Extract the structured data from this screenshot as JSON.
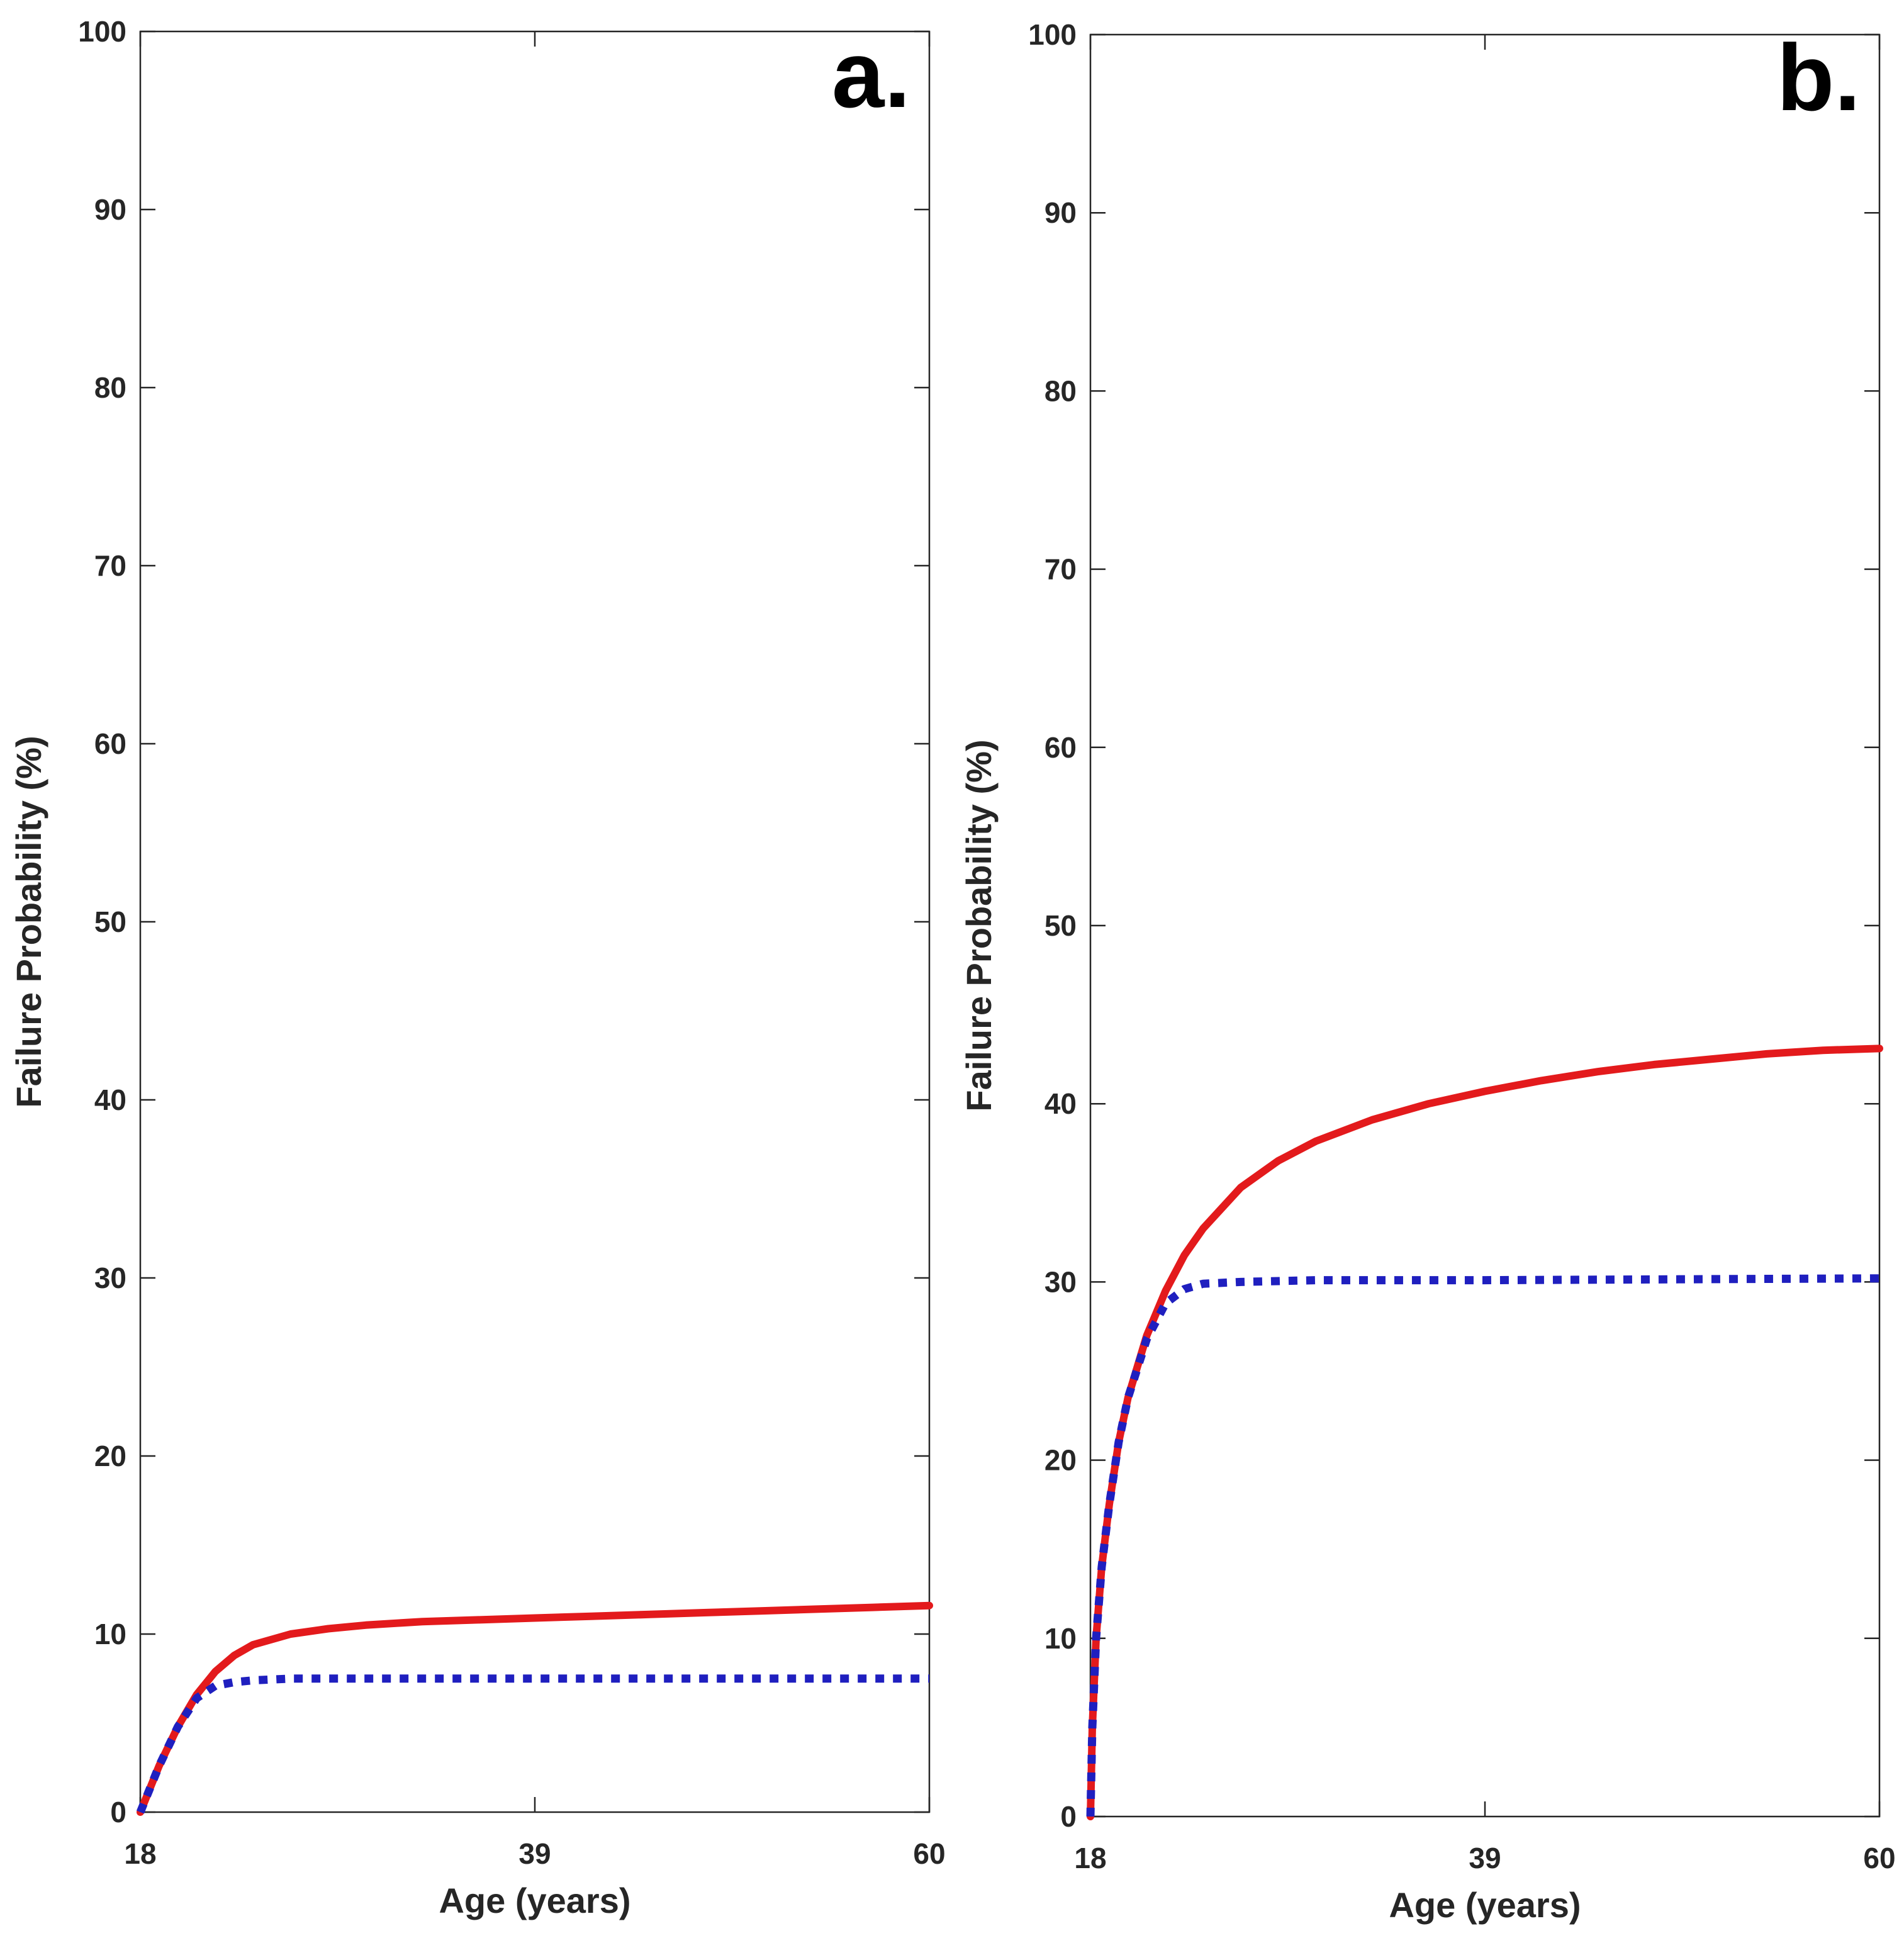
{
  "chart_data": [
    {
      "type": "line",
      "panel_label": "a.",
      "xlabel": "Age (years)",
      "ylabel": "Failure Probability (%)",
      "xlim": [
        18,
        60
      ],
      "ylim": [
        0,
        100
      ],
      "xticks": [
        18,
        39,
        60
      ],
      "xtick_labels": [
        "18",
        "39",
        "60"
      ],
      "yticks": [
        0,
        10,
        20,
        30,
        40,
        50,
        60,
        70,
        80,
        90,
        100
      ],
      "ytick_labels": [
        "0",
        "10",
        "20",
        "30",
        "40",
        "50",
        "60",
        "70",
        "80",
        "90",
        "100"
      ],
      "grid": false,
      "series": [
        {
          "name": "red solid",
          "color": "#e31a1c",
          "style": "solid",
          "x": [
            18,
            19,
            20,
            21,
            22,
            23,
            24,
            26,
            28,
            30,
            33,
            36,
            39,
            42,
            45,
            48,
            51,
            54,
            57,
            60
          ],
          "y": [
            0,
            2.6,
            4.8,
            6.6,
            7.9,
            8.8,
            9.4,
            10.0,
            10.3,
            10.5,
            10.7,
            10.8,
            10.9,
            11.0,
            11.1,
            11.2,
            11.3,
            11.4,
            11.5,
            11.6
          ]
        },
        {
          "name": "blue dotted",
          "color": "#1f1fbf",
          "style": "dotted",
          "x": [
            18,
            19,
            20,
            21,
            22,
            23,
            24,
            26,
            30,
            39,
            60
          ],
          "y": [
            0,
            2.6,
            4.8,
            6.4,
            7.1,
            7.3,
            7.4,
            7.5,
            7.5,
            7.5,
            7.5
          ]
        }
      ]
    },
    {
      "type": "line",
      "panel_label": "b.",
      "xlabel": "Age (years)",
      "ylabel": "Failure Probability (%)",
      "xlim": [
        18,
        60
      ],
      "ylim": [
        0,
        100
      ],
      "xticks": [
        18,
        39,
        60
      ],
      "xtick_labels": [
        "18",
        "39",
        "60"
      ],
      "yticks": [
        0,
        10,
        20,
        30,
        40,
        50,
        60,
        70,
        80,
        90,
        100
      ],
      "ytick_labels": [
        "0",
        "10",
        "20",
        "30",
        "40",
        "50",
        "60",
        "70",
        "80",
        "90",
        "100"
      ],
      "grid": false,
      "series": [
        {
          "name": "red solid",
          "color": "#e31a1c",
          "style": "solid",
          "x": [
            18,
            18.1,
            18.3,
            18.6,
            19,
            19.5,
            20,
            21,
            22,
            23,
            24,
            26,
            28,
            30,
            33,
            36,
            39,
            42,
            45,
            48,
            51,
            54,
            57,
            60
          ],
          "y": [
            0,
            5,
            10,
            14,
            17.5,
            21,
            23.5,
            27,
            29.5,
            31.5,
            33,
            35.3,
            36.8,
            37.9,
            39.1,
            40.0,
            40.7,
            41.3,
            41.8,
            42.2,
            42.5,
            42.8,
            43.0,
            43.1
          ]
        },
        {
          "name": "blue dotted",
          "color": "#1f1fbf",
          "style": "dotted",
          "x": [
            18,
            18.1,
            18.3,
            18.6,
            19,
            19.5,
            20,
            21,
            22,
            23,
            24,
            26,
            30,
            39,
            60
          ],
          "y": [
            0,
            5,
            10,
            14,
            17.5,
            21,
            23.5,
            26.8,
            28.8,
            29.6,
            29.9,
            30.0,
            30.1,
            30.1,
            30.2
          ]
        }
      ]
    }
  ]
}
